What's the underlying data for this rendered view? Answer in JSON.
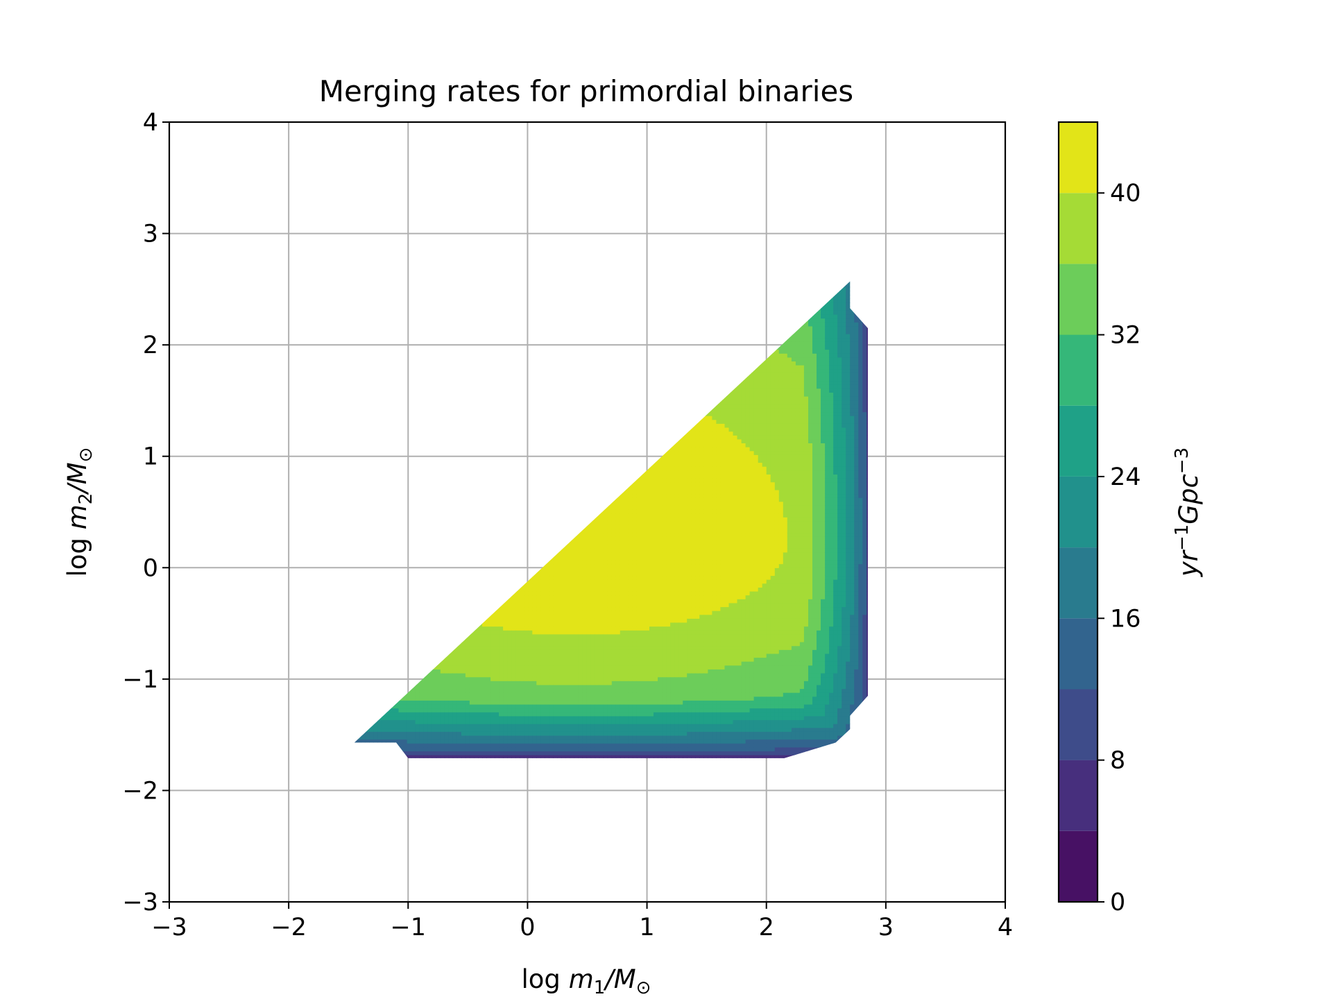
{
  "chart_data": {
    "type": "contourf",
    "title": "Merging rates for primordial binaries",
    "xlabel": {
      "prefix": "log ",
      "var": "m",
      "sub": "1",
      "suffix": "/M",
      "sym": "⊙"
    },
    "ylabel": {
      "prefix": "log ",
      "var": "m",
      "sub": "2",
      "suffix": "/M",
      "sym": "⊙"
    },
    "xlim": [
      -3,
      4
    ],
    "ylim": [
      -3,
      4
    ],
    "xticks": [
      -3,
      -2,
      -1,
      0,
      1,
      2,
      3,
      4
    ],
    "yticks": [
      -3,
      -2,
      -1,
      0,
      1,
      2,
      3,
      4
    ],
    "grid": true,
    "colormap": "viridis",
    "colorbar": {
      "label": {
        "a": "yr",
        "aexp": "−1",
        "b": "Gpc",
        "bexp": "−3"
      },
      "levels": [
        0,
        4,
        8,
        12,
        16,
        20,
        24,
        28,
        32,
        36,
        40,
        44
      ],
      "ticks": [
        0,
        8,
        16,
        24,
        32,
        40
      ],
      "colors": [
        "#471164",
        "#472f7d",
        "#3e4c8a",
        "#32648e",
        "#297b8e",
        "#21918c",
        "#1fa187",
        "#35b779",
        "#6ccd5a",
        "#a5db36",
        "#e2e418"
      ]
    },
    "region": {
      "description_note": "",
      "peak": {
        "x": 0.4,
        "y": 0.25,
        "value": 43
      },
      "levels_filled": [
        0,
        4,
        8,
        12,
        16,
        20,
        24,
        28,
        32,
        36,
        40
      ]
    }
  }
}
